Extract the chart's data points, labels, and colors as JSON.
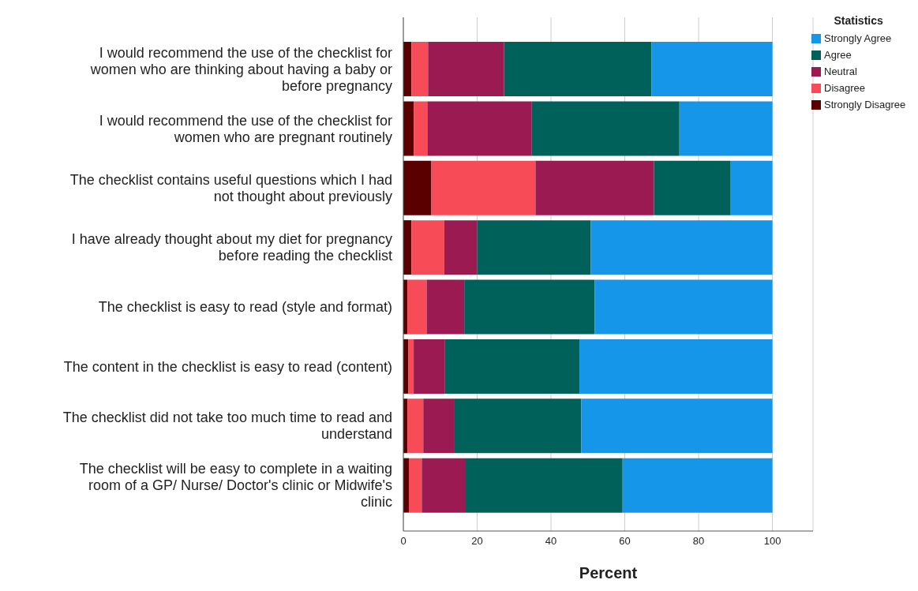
{
  "chart_data": {
    "type": "bar",
    "orientation": "horizontal",
    "stacked": true,
    "xlabel": "Percent",
    "legend_title": "Statistics",
    "legend": "top right",
    "grid": "x",
    "categories": [
      "I would recommend the use of the checklist for women who are thinking about having a baby or before pregnancy",
      "I would recommend the use of the checklist for women who are pregnant routinely",
      "The checklist contains useful questions which I had not thought about previously",
      "I have already thought about my diet for pregnancy before reading the checklist",
      "The checklist is easy to read (style and format)",
      "The content in the checklist is easy to read (content)",
      "The checklist did not take too much time to read and understand",
      "The checklist will be easy to complete in a waiting room of a GP/ Nurse/ Doctor's clinic or Midwife's clinic"
    ],
    "series": [
      {
        "name": "Strongly Disagree",
        "color": "#5a0000",
        "values": [
          2.2,
          2.8,
          7.6,
          2.2,
          1.1,
          1.3,
          1.1,
          1.5
        ]
      },
      {
        "name": "Disagree",
        "color": "#f84b58",
        "values": [
          4.5,
          3.7,
          28.2,
          8.9,
          5.2,
          1.5,
          4.3,
          3.5
        ]
      },
      {
        "name": "Neutral",
        "color": "#9c1a52",
        "values": [
          20.6,
          28.2,
          32.1,
          8.9,
          10.2,
          8.5,
          8.3,
          11.9
        ]
      },
      {
        "name": "Agree",
        "color": "#00605a",
        "values": [
          39.9,
          40.1,
          20.8,
          30.8,
          35.3,
          36.4,
          34.5,
          42.5
        ]
      },
      {
        "name": "Strongly Agree",
        "color": "#1696e8",
        "values": [
          32.8,
          25.2,
          11.3,
          49.2,
          48.2,
          52.3,
          51.8,
          40.6
        ]
      }
    ],
    "xlim": [
      0,
      111
    ],
    "xticks": [
      0,
      20,
      40,
      60,
      80,
      100
    ]
  }
}
